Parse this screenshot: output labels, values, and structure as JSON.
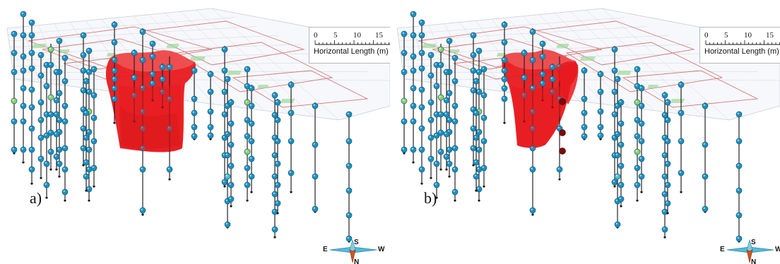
{
  "panels": [
    {
      "label": "a)",
      "variant": "a"
    },
    {
      "label": "b)",
      "variant": "b"
    }
  ],
  "scale_bar": {
    "title": "Horizontal Length (m)",
    "ticks": [
      "0",
      "5",
      "10",
      "15"
    ]
  },
  "compass": {
    "east": "E",
    "west": "W",
    "south": "S",
    "north": "N"
  },
  "colors": {
    "plume": "#e8191d",
    "plume_shadow": "#b10e12",
    "well_node": "#1f8fbe",
    "well_node_light": "#48c0d2",
    "well_node_green": "#8fd16a",
    "dark_node": "#7a0b0b",
    "well_line": "#222222",
    "site_plan": "#d47b7b",
    "site_plan_green": "#9fd79a"
  }
}
